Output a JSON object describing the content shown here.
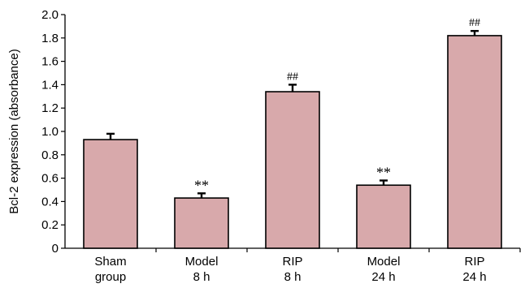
{
  "chart_data": {
    "type": "bar",
    "categories": [
      {
        "line1": "Sham",
        "line2": "group"
      },
      {
        "line1": "Model",
        "line2": "8 h"
      },
      {
        "line1": "RIP",
        "line2": "8 h"
      },
      {
        "line1": "Model",
        "line2": "24 h"
      },
      {
        "line1": "RIP",
        "line2": "24 h"
      }
    ],
    "values": [
      0.93,
      0.43,
      1.34,
      0.54,
      1.82
    ],
    "errors": [
      0.05,
      0.04,
      0.06,
      0.04,
      0.04
    ],
    "significance": [
      "",
      "**",
      "##",
      "**",
      "##"
    ],
    "ylabel": "Bcl-2 expression (absorbance)",
    "ylim": [
      0,
      2.0
    ],
    "yticks": [
      "0",
      "0.2",
      "0.4",
      "0.6",
      "0.8",
      "1.0",
      "1.2",
      "1.4",
      "1.6",
      "1.8",
      "2.0"
    ],
    "grid": false,
    "colors": {
      "bar_fill": "#d8a9ab",
      "bar_stroke": "#000000",
      "axis": "#000000"
    }
  }
}
